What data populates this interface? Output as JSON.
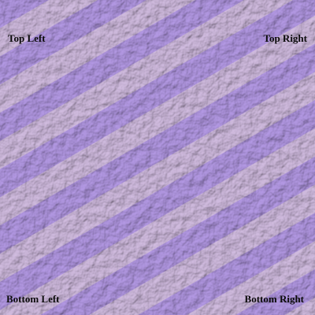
{
  "labels": {
    "top_left": "Top Left",
    "top_right": "Top Right",
    "bottom_left": "Bottom Left",
    "bottom_right": "Bottom Right"
  },
  "colors": {
    "stripe_lavender": "#a88fd6",
    "stripe_mauve": "#c4b0d2",
    "label_text": "#0b0b0b"
  },
  "texture": "leather-grain"
}
